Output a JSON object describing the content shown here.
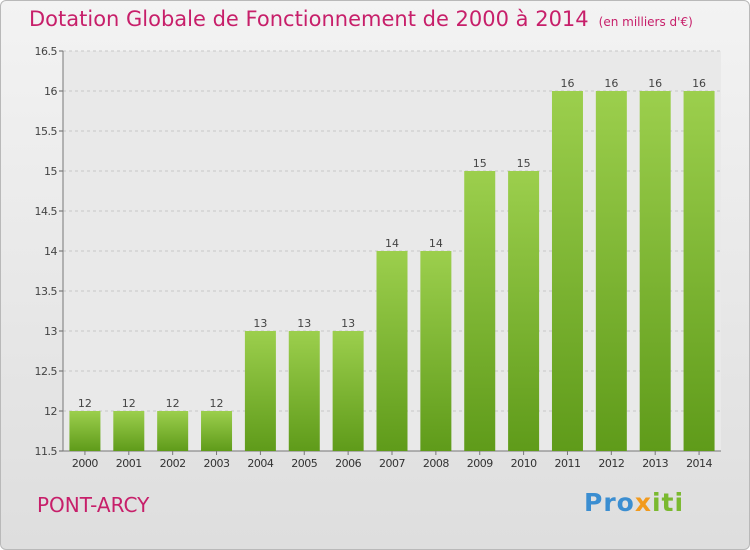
{
  "header": {
    "title": "Dotation Globale de Fonctionnement de 2000 à 2014",
    "unit": "(en milliers d'€)"
  },
  "footer": {
    "commune": "PONT-ARCY",
    "logo_parts": [
      "Pro",
      "x",
      "iti"
    ]
  },
  "colors": {
    "title": "#c71f6a",
    "bar_top": "#9ccf4d",
    "bar_bottom": "#5f9b1a",
    "logo_blue": "#3b8ed1",
    "logo_orange": "#f29a1d",
    "logo_green": "#7ab92f"
  },
  "chart_data": {
    "type": "bar",
    "categories": [
      "2000",
      "2001",
      "2002",
      "2003",
      "2004",
      "2005",
      "2006",
      "2007",
      "2008",
      "2009",
      "2010",
      "2011",
      "2012",
      "2013",
      "2014"
    ],
    "values": [
      12,
      12,
      12,
      12,
      13,
      13,
      13,
      14,
      14,
      15,
      15,
      16,
      16,
      16,
      16
    ],
    "ylim": [
      11.5,
      16.5
    ],
    "yticks": [
      "11.5",
      "12",
      "12.5",
      "13",
      "13.5",
      "14",
      "14.5",
      "15",
      "15.5",
      "16",
      "16.5"
    ],
    "grid": true
  }
}
